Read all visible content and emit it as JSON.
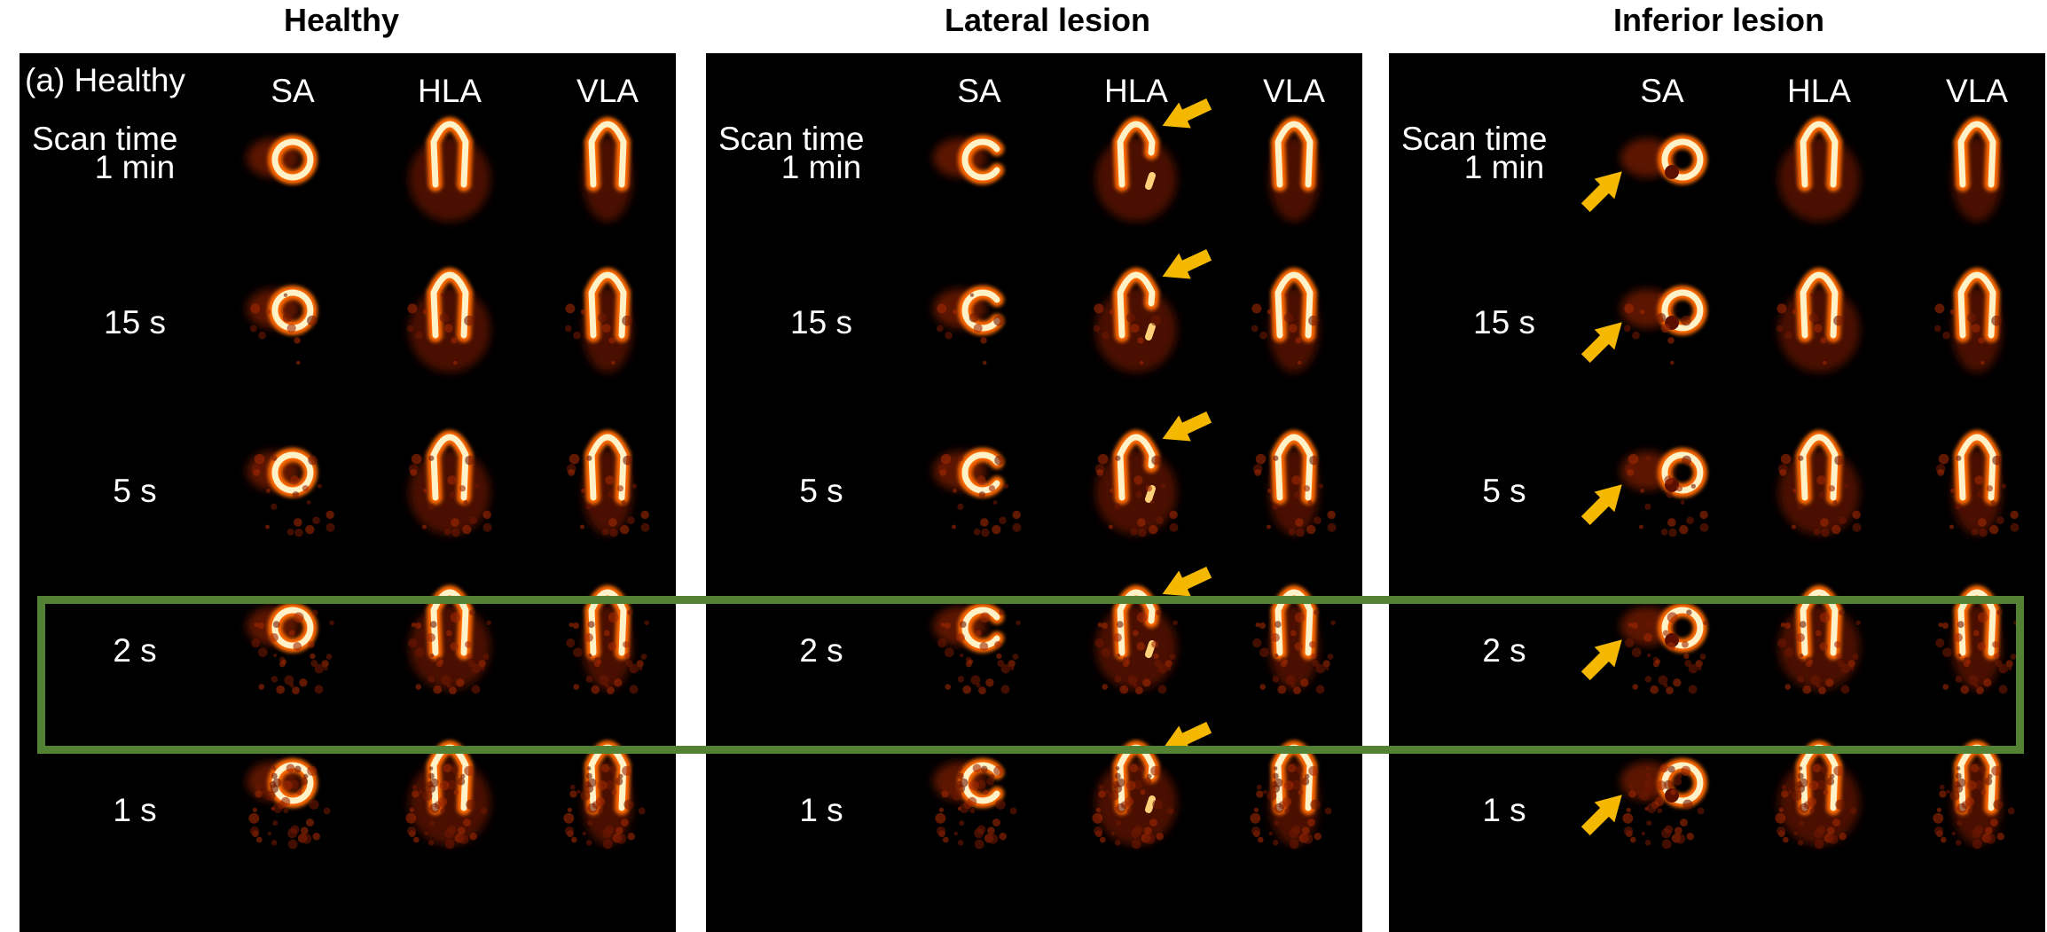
{
  "titles": [
    "Healthy",
    "Lateral lesion",
    "Inferior lesion"
  ],
  "panels": [
    {
      "panel_label": "(a) Healthy",
      "lesion": "none"
    },
    {
      "panel_label": "",
      "lesion": "lateral"
    },
    {
      "panel_label": "",
      "lesion": "inferior"
    }
  ],
  "columns": [
    "SA",
    "HLA",
    "VLA"
  ],
  "scan_time_label": "Scan time",
  "rows": [
    "1 min",
    "15 s",
    "5 s",
    "2 s",
    "1 s"
  ],
  "highlighted_row": "2 s",
  "colors": {
    "highlight_box": "#548235",
    "arrow": "#f5b800",
    "panel_bg": "#000000"
  }
}
